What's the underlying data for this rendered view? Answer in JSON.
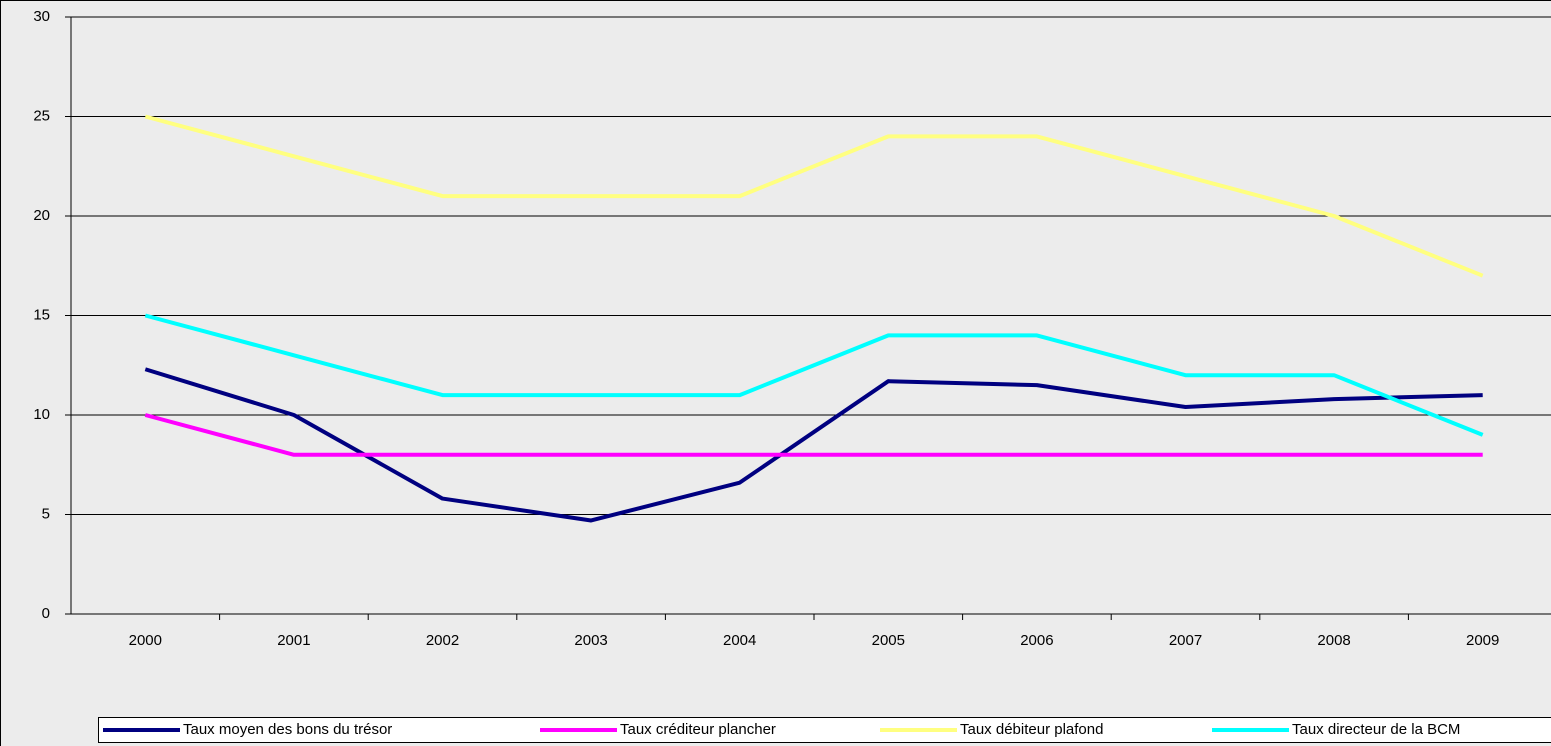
{
  "chart_data": {
    "type": "line",
    "categories": [
      "2000",
      "2001",
      "2002",
      "2003",
      "2004",
      "2005",
      "2006",
      "2007",
      "2008",
      "2009"
    ],
    "series": [
      {
        "name": "Taux moyen des bons du trésor",
        "color": "#000080",
        "values": [
          12.3,
          10,
          5.8,
          4.7,
          6.6,
          11.7,
          11.5,
          10.4,
          10.8,
          11
        ]
      },
      {
        "name": "Taux créditeur plancher",
        "color": "#ff00ff",
        "values": [
          10,
          8,
          8,
          8,
          8,
          8,
          8,
          8,
          8,
          8
        ]
      },
      {
        "name": "Taux débiteur plafond",
        "color": "#ffff80",
        "values": [
          25,
          23,
          21,
          21,
          21,
          24,
          24,
          22,
          20,
          17
        ]
      },
      {
        "name": "Taux directeur de la BCM",
        "color": "#00ffff",
        "values": [
          15,
          13,
          11,
          11,
          11,
          14,
          14,
          12,
          12,
          9
        ]
      }
    ],
    "ylim": [
      0,
      30
    ],
    "yticks": [
      0,
      5,
      10,
      15,
      20,
      25,
      30
    ],
    "grid": true,
    "legend": "bottom"
  }
}
